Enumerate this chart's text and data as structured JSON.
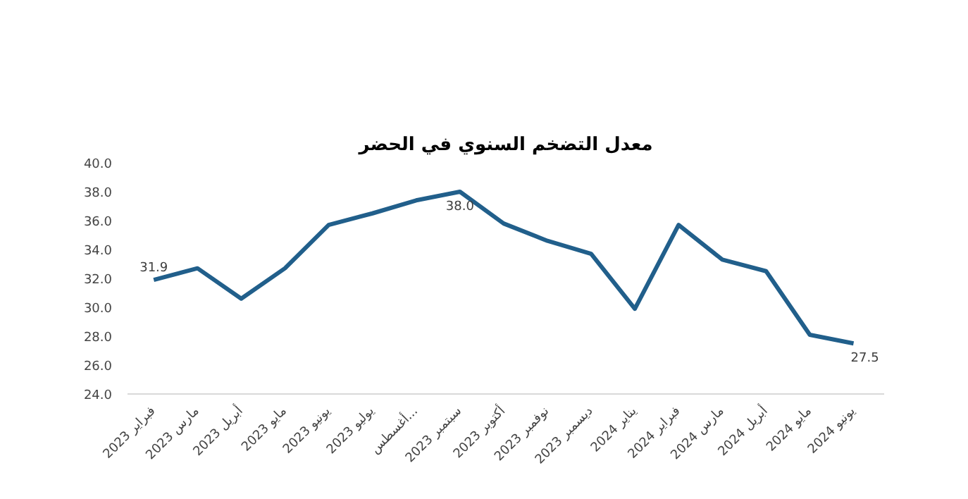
{
  "chart_data": {
    "type": "line",
    "title": "معدل التضخم السنوي في الحضر",
    "categories": [
      "فبراير 2023",
      "مارس 2023",
      "أبريل 2023",
      "مايو 2023",
      "يونيو 2023",
      "يوليو 2023",
      "أغسطس...",
      "سبتمبر 2023",
      "أكتوبر 2023",
      "نوفمبر 2023",
      "ديسمبر 2023",
      "يناير 2024",
      "فبراير 2024",
      "مارس 2024",
      "أبريل 2024",
      "مايو 2024",
      "يونيو 2024"
    ],
    "series": [
      {
        "color": "#215f8b",
        "values": [
          31.9,
          32.7,
          30.6,
          32.7,
          35.7,
          36.5,
          37.4,
          38.0,
          35.8,
          34.6,
          33.7,
          29.9,
          35.7,
          33.3,
          32.5,
          28.1,
          27.5
        ],
        "value_labels": [
          "31.9",
          null,
          null,
          null,
          null,
          null,
          null,
          "38.0",
          null,
          null,
          null,
          null,
          null,
          null,
          null,
          null,
          "27.5"
        ]
      }
    ],
    "ylim": [
      24,
      40
    ],
    "yticks": [
      {
        "value": 24,
        "label": "24.0"
      },
      {
        "value": 26,
        "label": "26.0"
      },
      {
        "value": 28,
        "label": "28.0"
      },
      {
        "value": 30,
        "label": "30.0"
      },
      {
        "value": 32,
        "label": "32.0"
      },
      {
        "value": 34,
        "label": "34.0"
      },
      {
        "value": 36,
        "label": "36.0"
      },
      {
        "value": 38,
        "label": "38.0"
      },
      {
        "value": 40,
        "label": "40.0"
      }
    ],
    "grid": false,
    "marker": "none",
    "line_style": "solid"
  }
}
